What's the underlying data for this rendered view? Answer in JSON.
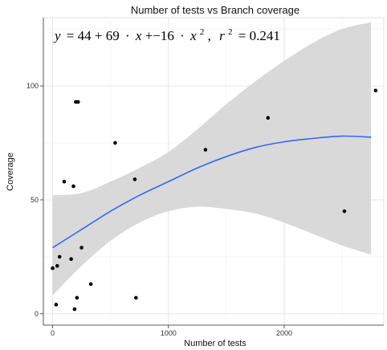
{
  "chart_data": {
    "type": "scatter",
    "title": "Number of tests vs Branch coverage",
    "xlabel": "Number of tests",
    "ylabel": "Coverage",
    "xlim": [
      -80,
      2860
    ],
    "ylim": [
      -5,
      130
    ],
    "x_ticks": [
      0,
      1000,
      2000
    ],
    "y_ticks": [
      0,
      50,
      100
    ],
    "grid": true,
    "annotation": {
      "y": "y",
      "eq": "= 44 + 69",
      "dot1": "·",
      "x1": "x",
      "plus": "+−16",
      "dot2": "·",
      "x2": "x",
      "exp": "2",
      "comma": ",",
      "r": "r",
      "r_exp": "2",
      "r_val": "= 0.241"
    },
    "points": [
      {
        "x": 0,
        "y": 20
      },
      {
        "x": 30,
        "y": 4
      },
      {
        "x": 40,
        "y": 21
      },
      {
        "x": 60,
        "y": 25
      },
      {
        "x": 100,
        "y": 58
      },
      {
        "x": 160,
        "y": 24
      },
      {
        "x": 180,
        "y": 56
      },
      {
        "x": 190,
        "y": 2
      },
      {
        "x": 200,
        "y": 93
      },
      {
        "x": 220,
        "y": 93
      },
      {
        "x": 210,
        "y": 7
      },
      {
        "x": 250,
        "y": 29
      },
      {
        "x": 330,
        "y": 13
      },
      {
        "x": 540,
        "y": 75
      },
      {
        "x": 710,
        "y": 59
      },
      {
        "x": 720,
        "y": 7
      },
      {
        "x": 1320,
        "y": 72
      },
      {
        "x": 1860,
        "y": 86
      },
      {
        "x": 2520,
        "y": 45
      },
      {
        "x": 2790,
        "y": 98
      }
    ],
    "fit": {
      "x": [
        0,
        250,
        500,
        750,
        1000,
        1250,
        1500,
        1750,
        2000,
        2250,
        2500,
        2750
      ],
      "y": [
        29,
        37,
        45,
        52,
        58,
        64,
        69,
        73,
        75.5,
        77,
        78,
        77.5
      ],
      "lower": [
        8,
        21,
        32,
        40,
        45,
        47,
        46,
        44,
        40,
        35,
        30,
        26
      ],
      "upper": [
        52,
        53,
        58,
        64,
        71,
        81,
        92,
        102,
        111,
        119,
        125,
        128
      ],
      "color": "#3366ff",
      "band_color": "#d9d9d9"
    },
    "point_color": "#000000"
  }
}
